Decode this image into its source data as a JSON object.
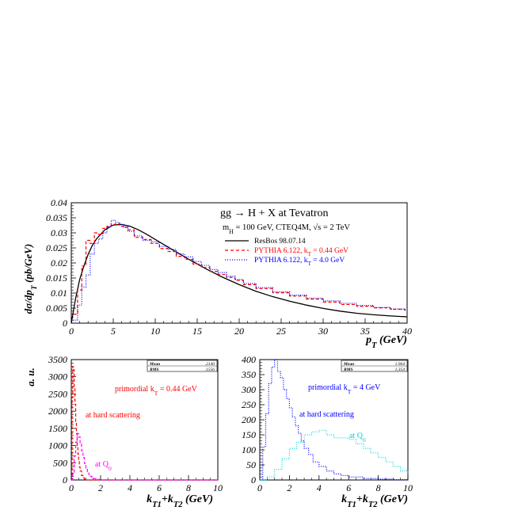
{
  "chart_data": [
    {
      "type": "line",
      "title": "gg → H + X at Tevatron",
      "subtitle": "m_H = 100 GeV, CTEQ4M, √s = 2 TeV",
      "xlabel": "p_T (GeV)",
      "ylabel": "dσ/dp_T (pb/GeV)",
      "xlim": [
        0,
        40
      ],
      "ylim": [
        0,
        0.04
      ],
      "xticks": [
        0,
        5,
        10,
        15,
        20,
        25,
        30,
        35,
        40
      ],
      "yticks": [
        0,
        0.005,
        0.01,
        0.015,
        0.02,
        0.025,
        0.03,
        0.035,
        0.04
      ],
      "legend_position": "top-right",
      "series": [
        {
          "name": "ResBos 98.07.14",
          "color": "#000000",
          "style": "solid",
          "x": [
            0,
            0.5,
            1,
            1.5,
            2,
            2.5,
            3,
            4,
            5,
            6,
            7,
            8,
            9,
            10,
            12,
            14,
            16,
            18,
            20,
            22,
            24,
            26,
            28,
            30,
            32,
            34,
            36,
            38,
            40
          ],
          "y": [
            0,
            0.008,
            0.0145,
            0.019,
            0.0228,
            0.0258,
            0.028,
            0.031,
            0.0326,
            0.0328,
            0.0322,
            0.031,
            0.0295,
            0.0278,
            0.0245,
            0.0212,
            0.0181,
            0.0153,
            0.0128,
            0.0106,
            0.0088,
            0.0073,
            0.006,
            0.0049,
            0.004,
            0.0033,
            0.0028,
            0.0024,
            0.0021
          ]
        },
        {
          "name": "PYTHIA 6.122, k_T = 0.44 GeV",
          "color": "#ff0000",
          "style": "dashed",
          "x": [
            0.25,
            0.75,
            1.25,
            1.75,
            2.25,
            2.75,
            3.25,
            3.75,
            4.25,
            4.75,
            5.25,
            5.75,
            6.25,
            6.75,
            7.5,
            8.5,
            9.5,
            10.5,
            11.5,
            12.5,
            13.5,
            14.5,
            15.5,
            16.5,
            17.5,
            18.5,
            19.5,
            20.5,
            22,
            24,
            26,
            28,
            30,
            32,
            34,
            36,
            38,
            39.75
          ],
          "y": [
            0.003,
            0.011,
            0.019,
            0.0275,
            0.0265,
            0.03,
            0.0295,
            0.0315,
            0.0322,
            0.0328,
            0.033,
            0.0322,
            0.0318,
            0.031,
            0.0285,
            0.0278,
            0.0265,
            0.0248,
            0.0238,
            0.0222,
            0.0212,
            0.0196,
            0.0185,
            0.0172,
            0.0162,
            0.0152,
            0.0142,
            0.0128,
            0.0115,
            0.0101,
            0.009,
            0.008,
            0.007,
            0.0062,
            0.0056,
            0.0051,
            0.0046,
            0.004
          ]
        },
        {
          "name": "PYTHIA 6.122, k_T = 4.0 GeV",
          "color": "#0000ff",
          "style": "dotted",
          "x": [
            0.25,
            0.75,
            1.25,
            1.75,
            2.25,
            2.75,
            3.25,
            3.75,
            4.25,
            4.75,
            5.25,
            5.75,
            6.25,
            6.75,
            7.5,
            8.5,
            9.5,
            10.5,
            11.5,
            12.5,
            13.5,
            14.5,
            15.5,
            16.5,
            17.5,
            18.5,
            19.5,
            20.5,
            22,
            24,
            26,
            28,
            30,
            32,
            34,
            36,
            38,
            39.75
          ],
          "y": [
            0.001,
            0.006,
            0.012,
            0.016,
            0.023,
            0.0265,
            0.028,
            0.03,
            0.032,
            0.0342,
            0.0335,
            0.0328,
            0.032,
            0.0305,
            0.029,
            0.0275,
            0.027,
            0.0255,
            0.0245,
            0.023,
            0.022,
            0.0205,
            0.0192,
            0.0178,
            0.0168,
            0.0156,
            0.0145,
            0.0132,
            0.0118,
            0.0104,
            0.0093,
            0.0083,
            0.0074,
            0.0066,
            0.0059,
            0.0052,
            0.0047,
            0.0042
          ]
        }
      ],
      "legend": [
        {
          "label": "ResBos 98.07.14",
          "color": "#000000",
          "style": "solid"
        },
        {
          "label": "PYTHIA 6.122, k_T = 0.44 GeV",
          "color": "#ff0000",
          "style": "dashed"
        },
        {
          "label": "PYTHIA 6.122, k_T = 4.0 GeV",
          "color": "#0000ff",
          "style": "dotted"
        }
      ]
    },
    {
      "type": "line",
      "xlabel": "k_T1+k_T2 (GeV)",
      "ylabel": "a. u.",
      "xlim": [
        0,
        10
      ],
      "ylim": [
        0,
        3500
      ],
      "xticks": [
        0,
        2,
        4,
        6,
        8,
        10
      ],
      "yticks": [
        0,
        500,
        1000,
        1500,
        2000,
        2500,
        3000,
        3500
      ],
      "stats": {
        "Mean": ".2140",
        "RMS": ".1556"
      },
      "annotations": [
        {
          "text": "primordial k_T = 0.44 GeV",
          "color": "#ff0000"
        },
        {
          "text": "at hard scattering",
          "color": "#ff0000"
        },
        {
          "text": "at Q_0",
          "color": "#ff00ff"
        }
      ],
      "series": [
        {
          "name": "at hard scattering",
          "color": "#ff0000",
          "style": "dashed",
          "x": [
            0,
            0.05,
            0.1,
            0.15,
            0.2,
            0.25,
            0.3,
            0.35,
            0.4,
            0.45,
            0.5,
            0.55,
            0.6,
            0.7,
            0.8,
            0.9,
            1.0,
            10
          ],
          "y": [
            0,
            2400,
            3300,
            3200,
            2700,
            2200,
            1700,
            1350,
            1000,
            750,
            550,
            380,
            260,
            130,
            60,
            25,
            0,
            0
          ]
        },
        {
          "name": "at Q_0",
          "color": "#ff00ff",
          "style": "dashed",
          "x": [
            0,
            0.1,
            0.2,
            0.3,
            0.4,
            0.5,
            0.6,
            0.7,
            0.8,
            0.9,
            1.0,
            1.1,
            1.2,
            1.3,
            1.4,
            1.5,
            1.7,
            2.0,
            10
          ],
          "y": [
            0,
            200,
            700,
            1100,
            1350,
            1250,
            1050,
            850,
            650,
            480,
            340,
            240,
            160,
            110,
            70,
            40,
            15,
            0,
            0
          ]
        }
      ]
    },
    {
      "type": "line",
      "xlabel": "k_T1+k_T2 (GeV)",
      "xlim": [
        0,
        10
      ],
      "ylim": [
        0,
        400
      ],
      "xticks": [
        0,
        2,
        4,
        6,
        8,
        10
      ],
      "yticks": [
        0,
        50,
        100,
        150,
        200,
        250,
        300,
        350,
        400
      ],
      "stats": {
        "Mean": "1.964",
        "RMS": "1.354"
      },
      "annotations": [
        {
          "text": "primordial k_T = 4 GeV",
          "color": "#0000ff"
        },
        {
          "text": "at hard scattering",
          "color": "#0000ff"
        },
        {
          "text": "at Q_0",
          "color": "#00dddd"
        }
      ],
      "series": [
        {
          "name": "at hard scattering",
          "color": "#0000ff",
          "style": "dotted",
          "x": [
            0,
            0.2,
            0.4,
            0.6,
            0.8,
            1.0,
            1.2,
            1.4,
            1.6,
            1.8,
            2.0,
            2.2,
            2.4,
            2.6,
            2.8,
            3.0,
            3.3,
            3.6,
            4.0,
            4.5,
            5.0,
            5.5,
            6.0,
            7.0,
            8.0,
            9.0,
            10.0
          ],
          "y": [
            0,
            110,
            220,
            320,
            375,
            400,
            360,
            340,
            300,
            270,
            240,
            210,
            180,
            155,
            130,
            105,
            85,
            60,
            45,
            30,
            20,
            15,
            10,
            5,
            3,
            1,
            0
          ]
        },
        {
          "name": "at Q_0",
          "color": "#00dddd",
          "style": "dotted",
          "x": [
            0,
            0.5,
            1.0,
            1.5,
            2.0,
            2.5,
            3.0,
            3.5,
            4.0,
            4.5,
            5.0,
            5.5,
            6.0,
            6.5,
            7.0,
            7.5,
            8.0,
            8.5,
            9.0,
            9.5,
            10.0
          ],
          "y": [
            0,
            10,
            35,
            70,
            105,
            125,
            150,
            160,
            165,
            150,
            140,
            140,
            135,
            120,
            105,
            90,
            75,
            60,
            45,
            30,
            20
          ]
        }
      ]
    }
  ]
}
